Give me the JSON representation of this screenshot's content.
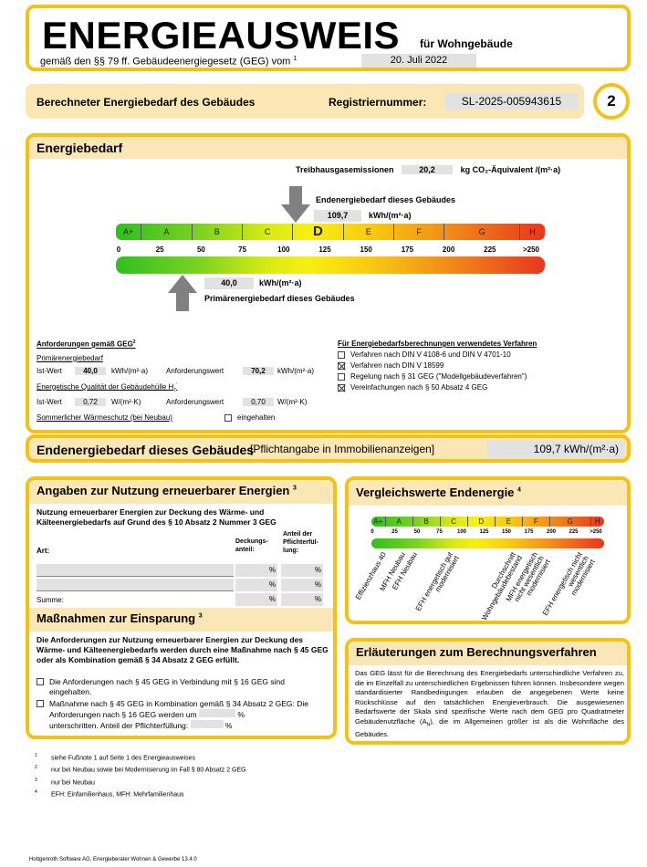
{
  "header": {
    "title": "ENERGIEAUSWEIS",
    "subtitle": "für Wohngebäude",
    "law": "gemäß den §§ 79 ff. Gebäudeenergiegesetz (GEG) vom",
    "law_fn": "1",
    "date": "20. Juli 2022"
  },
  "row2": {
    "label": "Berechneter Energiebedarf des Gebäudes",
    "reg_label": "Registriernummer:",
    "reg_value": "SL-2025-005943615",
    "page": "2"
  },
  "energie": {
    "title": "Energiebedarf",
    "co2_label": "Treibhausgasemissionen",
    "co2_value": "20,2",
    "co2_unit": "kg CO₂-Äquivalent /(m²·a)",
    "end_label": "Endenergiebedarf dieses Gebäudes",
    "end_value": "109,7",
    "end_unit": "kWh/(m²·a)",
    "prim_value": "40,0",
    "prim_unit": "kWh/(m²·a)",
    "prim_label": "Primärenergiebedarf dieses Gebäudes",
    "classes": [
      "A+",
      "A",
      "B",
      "C",
      "D",
      "E",
      "F",
      "G",
      "H"
    ],
    "active_class": "D",
    "ticks": [
      "0",
      "25",
      "50",
      "75",
      "100",
      "125",
      "150",
      "175",
      "200",
      "225",
      ">250"
    ],
    "end_marker": 109.7,
    "prim_marker": 40.0
  },
  "anf": {
    "title": "Anforderungen gemäß GEG",
    "fn": "2",
    "prim_title": "Primärenergiebedarf",
    "ist": "Ist-Wert",
    "ist_prim": "40,0",
    "unit_prim": "kWh/(m²·a)",
    "anf": "Anforderungswert",
    "anf_prim": "70,2",
    "huelle_title": "Energetische Qualität der Gebäudehülle H",
    "huelle_sub": "T",
    "huelle_sup": "'",
    "ist_h": "0,72",
    "unit_h": "W/(m²·K)",
    "anf_h": "0,70",
    "sommer": "Sommerlicher Wärmeschutz (bei Neubau)",
    "eingehalten": "eingehalten"
  },
  "verfahren": {
    "title": "Für Energiebedarfsberechnungen verwendetes Verfahren",
    "items": [
      {
        "label": "Verfahren nach DIN V 4108-6 und DIN V 4701-10",
        "checked": false
      },
      {
        "label": "Verfahren nach DIN V 18599",
        "checked": true
      },
      {
        "label": "Regelung nach § 31 GEG (\"Modellgebäudeverfahren\")",
        "checked": false
      },
      {
        "label": "Vereinfachungen nach § 50 Absatz 4 GEG",
        "checked": true
      }
    ]
  },
  "endbar": {
    "label": "Endenergiebedarf dieses Gebäudes",
    "note": "[Pflichtangabe in Immobilienanzeigen]",
    "value": "109,7 kWh/(m²·a)"
  },
  "erneuerbar": {
    "title": "Angaben zur Nutzung erneuerbarer Energien",
    "fn": "3",
    "intro": "Nutzung erneuerbarer Energien zur Deckung des Wärme- und Kälteenergiebedarfs auf Grund des § 10 Absatz 2 Nummer 3 GEG",
    "col_art": "Art:",
    "col_deck": "Deckungs-anteil:",
    "col_anteil": "Anteil der Pflichterfül-lung:",
    "pct": "%",
    "summe": "Summe:"
  },
  "massnahmen": {
    "title": "Maßnahmen zur Einsparung",
    "fn": "3",
    "intro": "Die Anforderungen zur Nutzung erneuerbarer Energien zur Deckung des Wärme- und Kälteenergiebedarfs werden durch eine Maßnahme nach § 45 GEG oder als Kombination gemäß § 34 Absatz 2 GEG erfüllt.",
    "opt1": "Die Anforderungen nach § 45 GEG in Verbindung mit § 16 GEG sind eingehalten.",
    "opt2a": "Maßnahme nach § 45 GEG in Kombination gemäß § 34 Absatz 2 GEG: Die Anforderungen nach § 16 GEG werden um",
    "opt2b": "unterschritten. Anteil der Pflichterfüllung:",
    "pct": "%"
  },
  "vergleich": {
    "title": "Vergleichswerte Endenergie",
    "fn": "4",
    "labels": [
      "Effizienzhaus 40",
      "MFH Neubau",
      "EFH Neubau",
      "EFH energetisch gut modernisiert",
      "Durchschnitt Wohngebäudebestand",
      "MFH energetisch nicht wesentlich modernisiert",
      "EFH energetisch nicht wesentlich modernisiert"
    ],
    "label_values": [
      10,
      32,
      45,
      85,
      155,
      180,
      230
    ]
  },
  "erlaeuterung": {
    "title": "Erläuterungen zum Berechnungsverfahren",
    "text": "Das GEG lässt für die Berechnung des Energiebedarfs unterschiedliche Verfahren zu, die im Einzelfall zu unterschiedlichen Ergebnissen führen können. Insbesondere wegen standardisierter Randbedingungen erlauben die angegebenen Werte keine Rückschlüsse auf den tatsächlichen Energieverbrauch. Die ausgewiesenen Bedarfswerte der Skala sind spezifische Werte nach dem GEG pro Quadratmeter Gebäudenutzfläche (A",
    "text_sub": "N",
    "text_end": "), die im Allgemeinen größer ist als die Wohnfläche des Gebäudes."
  },
  "footnotes": [
    {
      "n": "1",
      "t": "siehe Fußnote 1 auf Seite 1 des Energieausweises"
    },
    {
      "n": "2",
      "t": "nur bei Neubau sowie bei Modernisierung im Fall § 80 Absatz 2 GEG"
    },
    {
      "n": "3",
      "t": "nur bei Neubau"
    },
    {
      "n": "4",
      "t": "EFH: Einfamilienhaus, MFH: Mehrfamilienhaus"
    }
  ],
  "software": "Hottgenroth Software AG, Energieberater Wohnen & Gewerbe 13.4.0"
}
